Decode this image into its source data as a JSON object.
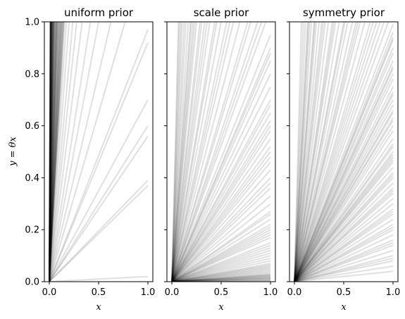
{
  "chart_data": {
    "type": "line",
    "ylabel": "y = θx",
    "sharey": true,
    "ylim": [
      0,
      1
    ],
    "xlim": [
      -0.05,
      1.05
    ],
    "xticks": [
      "0.0",
      "0.5",
      "1.0"
    ],
    "yticks": [
      "0.0",
      "0.2",
      "0.4",
      "0.6",
      "0.8",
      "1.0"
    ],
    "grid": false,
    "line_color": "#000000",
    "line_opacity": 0.12,
    "panels": [
      {
        "title": "uniform prior",
        "xlabel": "x",
        "x": [
          0,
          1
        ],
        "slopes": [
          0.37,
          0.39,
          0.56,
          0.6,
          0.7,
          0.92,
          0.97,
          0.02,
          1.3,
          1.6,
          2.0,
          2.4,
          3.0,
          3.6,
          4.2,
          5.0,
          5.8,
          6.5,
          7.2,
          8.0,
          9.5,
          10.5,
          12.0,
          14.0,
          16.0,
          18.5,
          21.0,
          24.0,
          28.0,
          33.0,
          38.0,
          44.0,
          50.0,
          58.0,
          66.0,
          75.0,
          85.0,
          95.0,
          6.8,
          7.5,
          8.5,
          9.0,
          10.0,
          11.0,
          13.0,
          15.0,
          17.0,
          20.0,
          23.0,
          26.0,
          30.0,
          35.0,
          40.0,
          47.0,
          55.0,
          62.0,
          70.0,
          80.0,
          90.0,
          99.0,
          7.0,
          7.8,
          8.3,
          9.2,
          11.5,
          12.5,
          13.5,
          14.5,
          19.0,
          22.0,
          25.0,
          27.0,
          31.0,
          36.0,
          42.0,
          48.0,
          53.0,
          60.0,
          68.0,
          78.0,
          88.0,
          97.0
        ]
      },
      {
        "title": "scale prior",
        "xlabel": "x",
        "x": [
          0,
          1
        ],
        "slopes": [
          0.003,
          0.006,
          0.01,
          0.013,
          0.016,
          0.02,
          0.023,
          0.027,
          0.03,
          0.035,
          0.04,
          0.05,
          0.06,
          0.07,
          0.08,
          0.09,
          0.1,
          0.11,
          0.13,
          0.15,
          0.17,
          0.19,
          0.2,
          0.21,
          0.22,
          0.24,
          0.27,
          0.3,
          0.33,
          0.36,
          0.4,
          0.43,
          0.46,
          0.5,
          0.55,
          0.58,
          0.6,
          0.65,
          0.7,
          0.75,
          0.8,
          0.85,
          0.9,
          0.95,
          1.05,
          1.15,
          1.3,
          1.45,
          1.6,
          1.8,
          2.0,
          2.3,
          2.6,
          3.0,
          3.5,
          4.0,
          4.6,
          5.3,
          6.0,
          7.0,
          8.0,
          9.5,
          11.0,
          13.0,
          15.0,
          0.005,
          0.012,
          0.018,
          0.025,
          0.045,
          0.055,
          0.065,
          0.12,
          0.14,
          0.18,
          0.26,
          0.38,
          0.48,
          0.52,
          0.62,
          0.68,
          0.88,
          1.1,
          1.25,
          1.7,
          2.2,
          2.8,
          3.3,
          4.3,
          5.0
        ]
      },
      {
        "title": "symmetry prior",
        "xlabel": "x",
        "x": [
          0,
          1
        ],
        "slopes": [
          0.04,
          0.06,
          0.08,
          0.1,
          0.12,
          0.14,
          0.16,
          0.18,
          0.2,
          0.22,
          0.24,
          0.26,
          0.28,
          0.3,
          0.32,
          0.34,
          0.36,
          0.38,
          0.4,
          0.42,
          0.44,
          0.46,
          0.48,
          0.49,
          0.5,
          0.52,
          0.55,
          0.58,
          0.6,
          0.62,
          0.65,
          0.66,
          0.68,
          0.7,
          0.72,
          0.75,
          0.78,
          0.8,
          0.82,
          0.85,
          0.88,
          0.9,
          0.93,
          0.96,
          0.99,
          1.05,
          1.1,
          1.15,
          1.2,
          1.3,
          1.4,
          1.5,
          1.6,
          1.7,
          1.85,
          2.0,
          2.2,
          2.4,
          2.6,
          2.9,
          3.2,
          3.6,
          4.0,
          4.5,
          5.0,
          5.8,
          6.5,
          7.5,
          9.0,
          11.0,
          14.0,
          0.09,
          0.15,
          0.21,
          0.27,
          0.35,
          0.41,
          0.47,
          0.53,
          0.63,
          0.73,
          0.83,
          0.94,
          1.25,
          1.55,
          1.95,
          2.5,
          3.4,
          4.8,
          7.0
        ]
      }
    ]
  }
}
